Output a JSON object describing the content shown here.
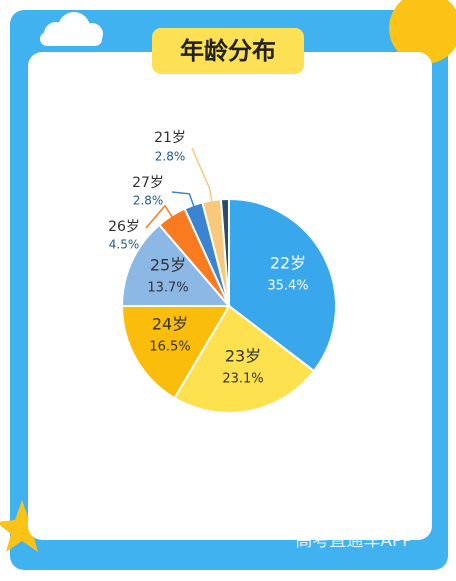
{
  "title": "年龄分布",
  "watermark": "高考直通车APP",
  "chart_data": {
    "type": "pie",
    "categories": [
      "22岁",
      "23岁",
      "24岁",
      "25岁",
      "26岁",
      "27岁",
      "21岁",
      null
    ],
    "values": [
      35.4,
      23.1,
      16.5,
      13.7,
      4.5,
      2.8,
      2.8,
      1.2
    ],
    "value_labels": [
      "35.4%",
      "23.1%",
      "16.5%",
      "13.7%",
      "4.5%",
      "2.8%",
      "2.8%",
      null
    ],
    "colors": [
      "#38a7ec",
      "#fde14f",
      "#fbbd0c",
      "#8cb8e6",
      "#f97b1f",
      "#3a84d2",
      "#f8c97c",
      "#2c4a6a"
    ]
  }
}
